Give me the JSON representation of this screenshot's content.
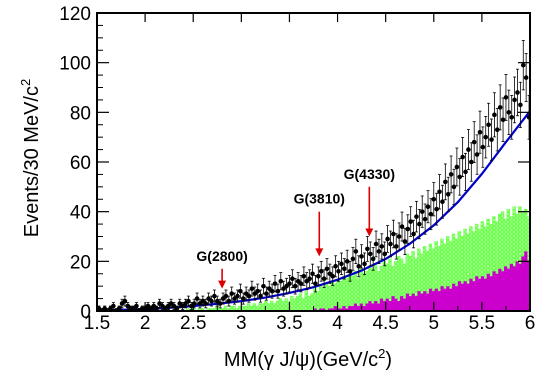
{
  "chart_data": {
    "type": "scatter",
    "xlabel": "MM(γ J/ψ)(GeV/c",
    "xlabel_sup": "2",
    "xlabel_tail": ")",
    "ylabel": "Events/30 MeV/c",
    "ylabel_sup": "2",
    "xlim": [
      1.5,
      6.0
    ],
    "ylim": [
      0,
      120
    ],
    "x_ticks": [
      1.5,
      2,
      2.5,
      3,
      3.5,
      4,
      4.5,
      5,
      5.5,
      6
    ],
    "x_tick_labels": [
      "1.5",
      "2",
      "2.5",
      "3",
      "3.5",
      "4",
      "4.5",
      "5",
      "5.5",
      "6"
    ],
    "y_ticks": [
      0,
      20,
      40,
      60,
      80,
      100,
      120
    ],
    "y_tick_labels": [
      "0",
      "20",
      "40",
      "60",
      "80",
      "100",
      "120"
    ],
    "grid": false,
    "colors": {
      "data": "#000000",
      "fit_line": "#0000cc",
      "green_hist": "#66ff44",
      "magenta_hist": "#cc00cc",
      "arrow": "#dd0000"
    },
    "annotations": [
      {
        "label": "G(2800)",
        "x": 2.8,
        "arrow_y_top": 17,
        "arrow_y_bottom": 9
      },
      {
        "label": "G(3810)",
        "x": 3.81,
        "arrow_y_top": 40,
        "arrow_y_bottom": 22
      },
      {
        "label": "G(4330)",
        "x": 4.33,
        "arrow_y_top": 50,
        "arrow_y_bottom": 30
      }
    ],
    "series": [
      {
        "kind": "points",
        "x": [
          1.52,
          1.55,
          1.58,
          1.61,
          1.64,
          1.67,
          1.7,
          1.73,
          1.76,
          1.79,
          1.82,
          1.85,
          1.88,
          1.91,
          1.94,
          1.97,
          2.0,
          2.03,
          2.06,
          2.09,
          2.12,
          2.15,
          2.18,
          2.21,
          2.24,
          2.27,
          2.3,
          2.33,
          2.36,
          2.39,
          2.42,
          2.45,
          2.48,
          2.51,
          2.54,
          2.57,
          2.6,
          2.63,
          2.66,
          2.69,
          2.72,
          2.75,
          2.78,
          2.81,
          2.84,
          2.87,
          2.9,
          2.93,
          2.96,
          2.99,
          3.02,
          3.05,
          3.08,
          3.11,
          3.14,
          3.17,
          3.2,
          3.23,
          3.26,
          3.29,
          3.32,
          3.35,
          3.38,
          3.41,
          3.44,
          3.47,
          3.5,
          3.53,
          3.56,
          3.59,
          3.62,
          3.65,
          3.68,
          3.71,
          3.74,
          3.77,
          3.8,
          3.83,
          3.86,
          3.89,
          3.92,
          3.95,
          3.98,
          4.01,
          4.04,
          4.07,
          4.1,
          4.13,
          4.16,
          4.19,
          4.22,
          4.25,
          4.28,
          4.31,
          4.34,
          4.37,
          4.4,
          4.43,
          4.46,
          4.49,
          4.52,
          4.55,
          4.58,
          4.61,
          4.64,
          4.67,
          4.7,
          4.73,
          4.76,
          4.79,
          4.82,
          4.85,
          4.88,
          4.91,
          4.94,
          4.97,
          5.0,
          5.03,
          5.06,
          5.09,
          5.12,
          5.15,
          5.18,
          5.21,
          5.24,
          5.27,
          5.3,
          5.33,
          5.36,
          5.39,
          5.42,
          5.45,
          5.48,
          5.51,
          5.54,
          5.57,
          5.6,
          5.63,
          5.66,
          5.69,
          5.72,
          5.75,
          5.78,
          5.81,
          5.84,
          5.87,
          5.9,
          5.93,
          5.96,
          5.99
        ],
        "y": [
          1,
          0,
          1,
          0,
          1,
          2,
          0,
          1,
          3,
          4,
          2,
          1,
          1,
          2,
          0,
          1,
          1,
          2,
          1,
          2,
          1,
          3,
          2,
          1,
          2,
          3,
          2,
          1,
          3,
          2,
          3,
          4,
          2,
          3,
          5,
          3,
          4,
          3,
          5,
          4,
          6,
          4,
          3,
          5,
          6,
          4,
          7,
          5,
          6,
          8,
          5,
          7,
          6,
          9,
          7,
          8,
          6,
          10,
          7,
          9,
          8,
          11,
          8,
          12,
          9,
          10,
          11,
          13,
          10,
          12,
          11,
          14,
          12,
          13,
          15,
          11,
          14,
          16,
          13,
          17,
          15,
          14,
          18,
          16,
          19,
          17,
          20,
          16,
          21,
          24,
          18,
          22,
          19,
          25,
          23,
          21,
          27,
          24,
          26,
          23,
          29,
          27,
          31,
          26,
          30,
          34,
          28,
          33,
          36,
          31,
          38,
          35,
          40,
          37,
          42,
          39,
          45,
          41,
          48,
          44,
          52,
          47,
          55,
          50,
          58,
          54,
          62,
          56,
          65,
          60,
          68,
          63,
          72,
          66,
          70,
          75,
          69,
          79,
          73,
          82,
          77,
          86,
          80,
          78,
          85,
          88,
          83,
          99,
          94,
          78
        ]
      },
      {
        "kind": "fit",
        "x": [
          1.5,
          1.75,
          2.0,
          2.25,
          2.5,
          2.75,
          3.0,
          3.25,
          3.5,
          3.75,
          4.0,
          4.25,
          4.5,
          4.75,
          5.0,
          5.25,
          5.5,
          5.75,
          6.0
        ],
        "y": [
          0.3,
          0.5,
          0.8,
          1.3,
          2.0,
          2.9,
          4.0,
          5.4,
          7.3,
          9.6,
          12.6,
          16.3,
          21.0,
          27.0,
          34.5,
          43.8,
          55.2,
          68.0,
          80.5
        ]
      },
      {
        "kind": "green_histogram",
        "bin_width": 0.03,
        "start": 1.5,
        "values": [
          0,
          0,
          0,
          0,
          0,
          0,
          0,
          0,
          0,
          0,
          0,
          0,
          0,
          0,
          0,
          0,
          0,
          0,
          0,
          0,
          0,
          0,
          0,
          0,
          0,
          0,
          0,
          0,
          0,
          0,
          0,
          1,
          0,
          1,
          0,
          1,
          1,
          0,
          1,
          1,
          1,
          2,
          1,
          1,
          2,
          1,
          2,
          2,
          1,
          2,
          2,
          2,
          3,
          2,
          3,
          2,
          3,
          3,
          4,
          3,
          4,
          3,
          4,
          5,
          4,
          5,
          4,
          6,
          5,
          6,
          7,
          5,
          8,
          6,
          7,
          9,
          8,
          10,
          9,
          11,
          10,
          12,
          11,
          13,
          12,
          14,
          13,
          15,
          14,
          16,
          13,
          17,
          15,
          16,
          18,
          17,
          19,
          16,
          18,
          20,
          19,
          21,
          18,
          20,
          22,
          21,
          19,
          23,
          22,
          24,
          21,
          25,
          23,
          26,
          24,
          27,
          25,
          28,
          26,
          29,
          27,
          30,
          28,
          31,
          29,
          32,
          30,
          33,
          31,
          34,
          32,
          35,
          33,
          36,
          34,
          37,
          35,
          38,
          36,
          39,
          40,
          37,
          41,
          38,
          42,
          39,
          42,
          40,
          41,
          38
        ]
      },
      {
        "kind": "magenta_histogram",
        "bin_width": 0.03,
        "start": 1.5,
        "values": [
          0,
          0,
          0,
          0,
          0,
          0,
          0,
          0,
          0,
          0,
          0,
          0,
          0,
          0,
          0,
          0,
          0,
          0,
          0,
          0,
          0,
          0,
          0,
          0,
          0,
          0,
          0,
          0,
          0,
          0,
          0,
          0,
          0,
          0,
          0,
          0,
          0,
          0,
          0,
          0,
          0,
          0,
          0,
          0,
          0,
          0,
          0,
          0,
          0,
          0,
          0,
          0,
          0,
          0,
          0,
          0,
          0,
          0,
          0,
          0,
          0,
          0,
          0,
          0,
          0,
          0,
          0,
          0,
          0,
          0,
          0,
          0,
          0,
          0,
          0,
          1,
          0,
          1,
          1,
          0,
          1,
          1,
          2,
          1,
          1,
          2,
          1,
          2,
          2,
          3,
          2,
          3,
          2,
          3,
          4,
          3,
          4,
          3,
          5,
          4,
          5,
          4,
          6,
          5,
          4,
          6,
          5,
          7,
          6,
          7,
          6,
          8,
          7,
          8,
          7,
          9,
          8,
          9,
          8,
          10,
          9,
          10,
          9,
          11,
          10,
          12,
          11,
          12,
          11,
          13,
          12,
          14,
          13,
          14,
          13,
          15,
          14,
          16,
          15,
          17,
          16,
          18,
          17,
          19,
          18,
          20,
          19,
          22,
          24,
          20
        ]
      }
    ]
  }
}
